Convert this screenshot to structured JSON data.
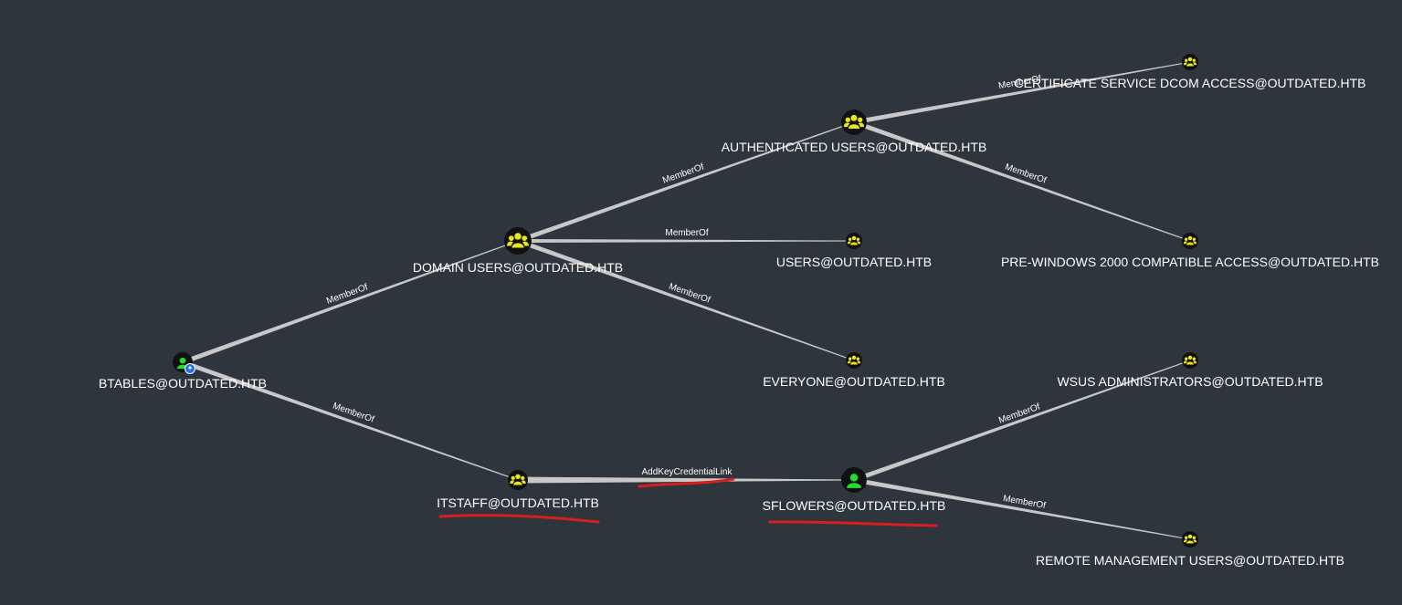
{
  "graph": {
    "background": "#2f353d",
    "colors": {
      "edge": "#c8c8c8",
      "node_fill": "#111111",
      "group_icon": "#e6e61a",
      "user_icon": "#22dd33",
      "badge": "#1a73e8",
      "annotation": "#d81e1e"
    },
    "nodes": [
      {
        "id": "btables",
        "label": "BTABLES@OUTDATED.HTB",
        "kind": "user",
        "icon": "user-icon",
        "badge": "owned-badge-icon"
      },
      {
        "id": "domain_users",
        "label": "DOMAIN USERS@OUTDATED.HTB",
        "kind": "group",
        "icon": "group-icon"
      },
      {
        "id": "authenticated_users",
        "label": "AUTHENTICATED USERS@OUTDATED.HTB",
        "kind": "group",
        "icon": "group-icon"
      },
      {
        "id": "users",
        "label": "USERS@OUTDATED.HTB",
        "kind": "group",
        "icon": "group-icon"
      },
      {
        "id": "everyone",
        "label": "EVERYONE@OUTDATED.HTB",
        "kind": "group",
        "icon": "group-icon"
      },
      {
        "id": "cert_dcom",
        "label": "CERTIFICATE SERVICE DCOM ACCESS@OUTDATED.HTB",
        "kind": "group",
        "icon": "group-icon"
      },
      {
        "id": "pre_win2000",
        "label": "PRE-WINDOWS 2000 COMPATIBLE ACCESS@OUTDATED.HTB",
        "kind": "group",
        "icon": "group-icon"
      },
      {
        "id": "itstaff",
        "label": "ITSTAFF@OUTDATED.HTB",
        "kind": "group",
        "icon": "group-icon"
      },
      {
        "id": "sflowers",
        "label": "SFLOWERS@OUTDATED.HTB",
        "kind": "user",
        "icon": "user-icon"
      },
      {
        "id": "wsus_admins",
        "label": "WSUS ADMINISTRATORS@OUTDATED.HTB",
        "kind": "group",
        "icon": "group-icon"
      },
      {
        "id": "remote_mgmt",
        "label": "REMOTE MANAGEMENT USERS@OUTDATED.HTB",
        "kind": "group",
        "icon": "group-icon"
      }
    ],
    "edges": [
      {
        "id": "e1",
        "from": "btables",
        "to": "domain_users",
        "label": "MemberOf"
      },
      {
        "id": "e2",
        "from": "btables",
        "to": "itstaff",
        "label": "MemberOf"
      },
      {
        "id": "e3",
        "from": "domain_users",
        "to": "authenticated_users",
        "label": "MemberOf"
      },
      {
        "id": "e4",
        "from": "domain_users",
        "to": "users",
        "label": "MemberOf"
      },
      {
        "id": "e5",
        "from": "domain_users",
        "to": "everyone",
        "label": "MemberOf"
      },
      {
        "id": "e6",
        "from": "authenticated_users",
        "to": "cert_dcom",
        "label": "MemberOf"
      },
      {
        "id": "e7",
        "from": "authenticated_users",
        "to": "pre_win2000",
        "label": "MemberOf"
      },
      {
        "id": "e8",
        "from": "itstaff",
        "to": "sflowers",
        "label": "AddKeyCredentialLink"
      },
      {
        "id": "e9",
        "from": "sflowers",
        "to": "wsus_admins",
        "label": "MemberOf"
      },
      {
        "id": "e10",
        "from": "sflowers",
        "to": "remote_mgmt",
        "label": "MemberOf"
      }
    ],
    "annotations": [
      {
        "id": "underline-itstaff",
        "target": "itstaff",
        "kind": "red-underline"
      },
      {
        "id": "underline-edge",
        "target": "e8",
        "kind": "red-underline"
      },
      {
        "id": "underline-sflowers",
        "target": "sflowers",
        "kind": "red-underline"
      }
    ]
  }
}
